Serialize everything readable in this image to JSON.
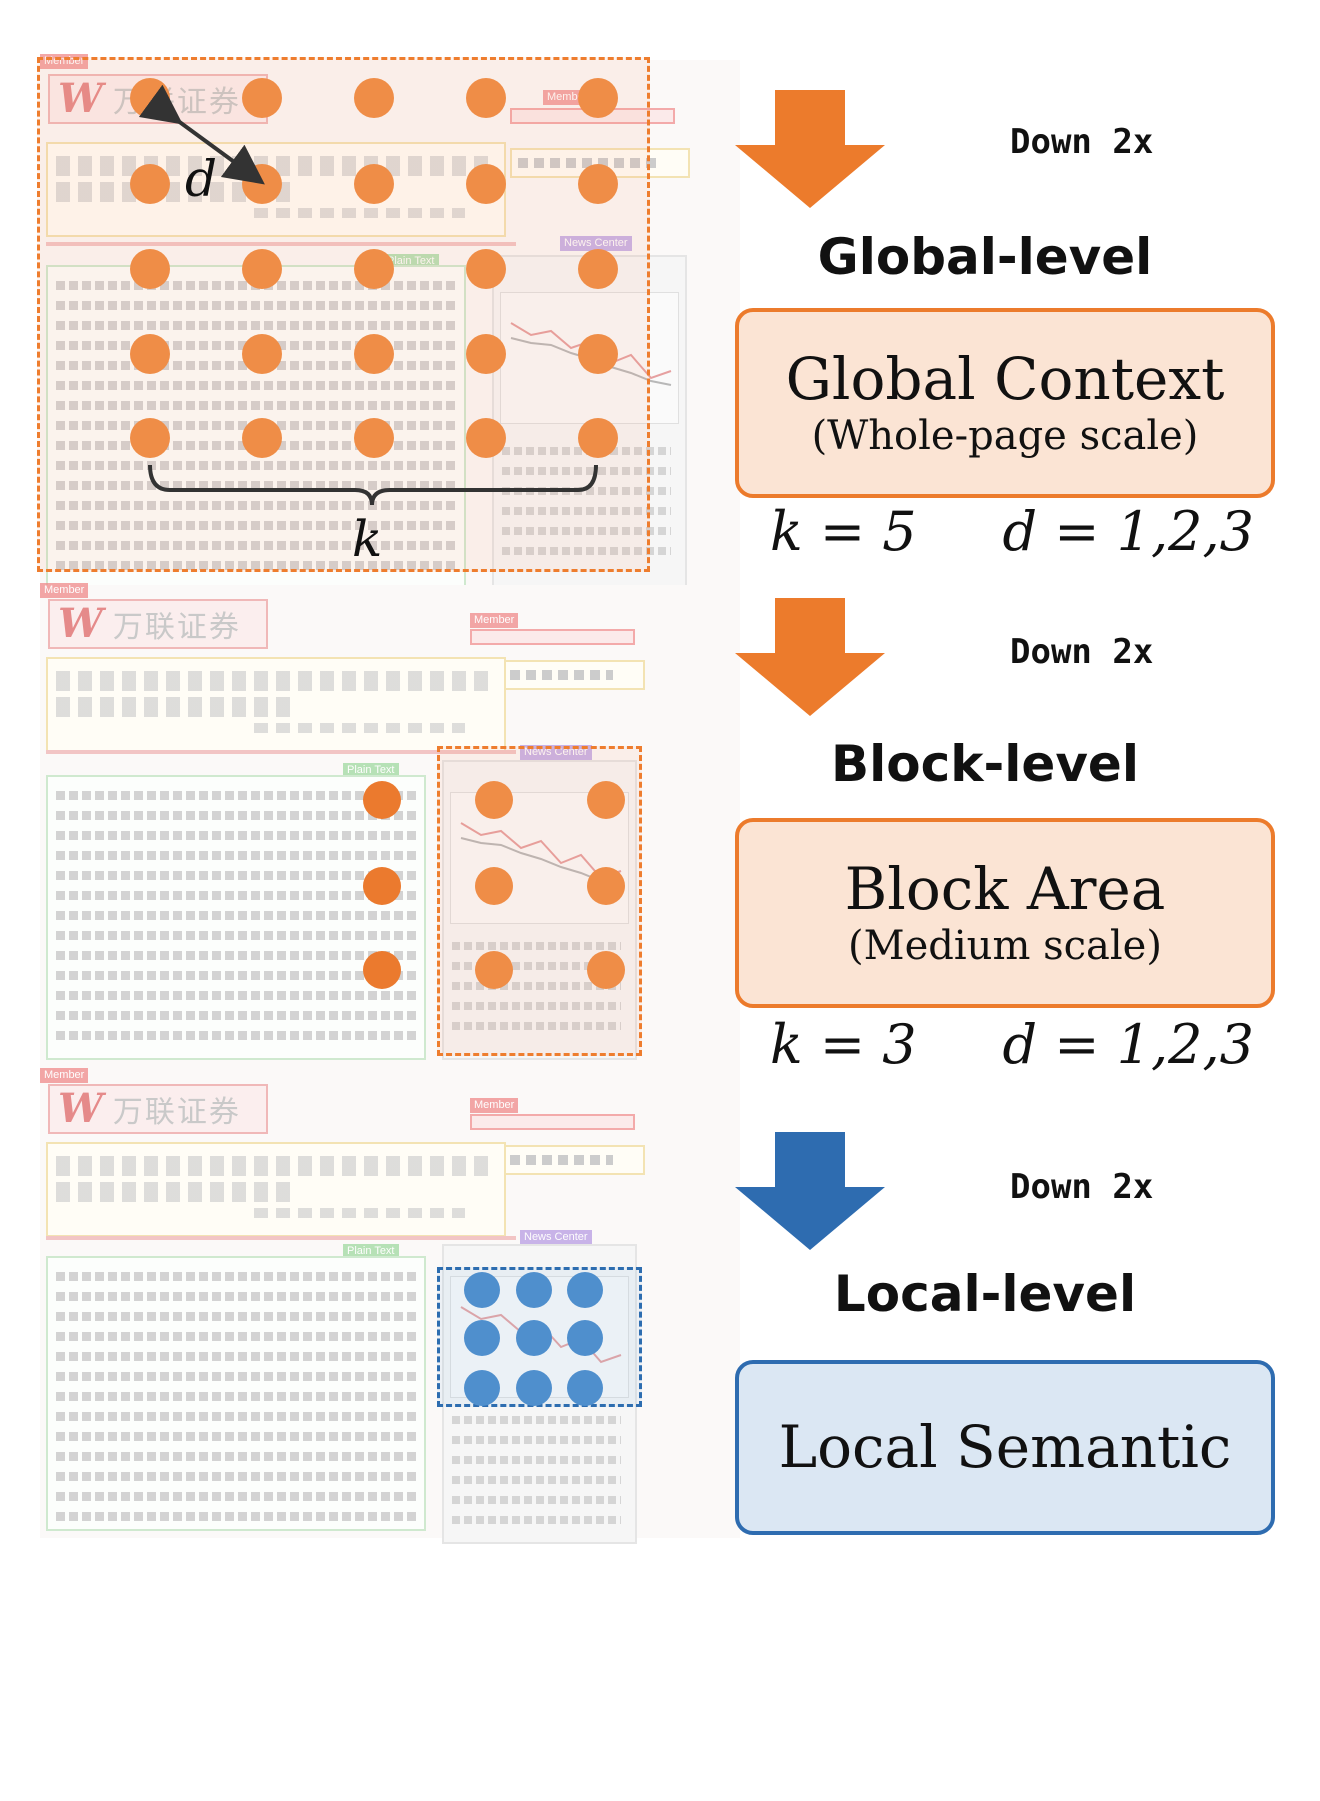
{
  "levels": [
    {
      "down": "Down 2x",
      "title": "Global-level",
      "card_main": "Global Context",
      "card_sub": "(Whole-page scale)",
      "k": "k = 5",
      "d": "d = 1,2,3",
      "color": "#ec7b2c"
    },
    {
      "down": "Down 2x",
      "title": "Block-level",
      "card_main": "Block Area",
      "card_sub": "(Medium scale)",
      "k": "k = 3",
      "d": "d = 1,2,3",
      "color": "#ec7b2c"
    },
    {
      "down": "Down 2x",
      "title": "Local-level",
      "card_main": "Local Semantic",
      "color": "#2e6cb0"
    }
  ],
  "document": {
    "logo_mark": "W",
    "logo_text": "万联证券",
    "labels": {
      "member": "Member",
      "plain_text": "Plain Text",
      "news": "News Center"
    }
  },
  "annotations": {
    "k": "k",
    "d": "d"
  },
  "icons": {
    "arrow_orange": "down-arrow-icon",
    "arrow_blue": "down-arrow-icon"
  }
}
